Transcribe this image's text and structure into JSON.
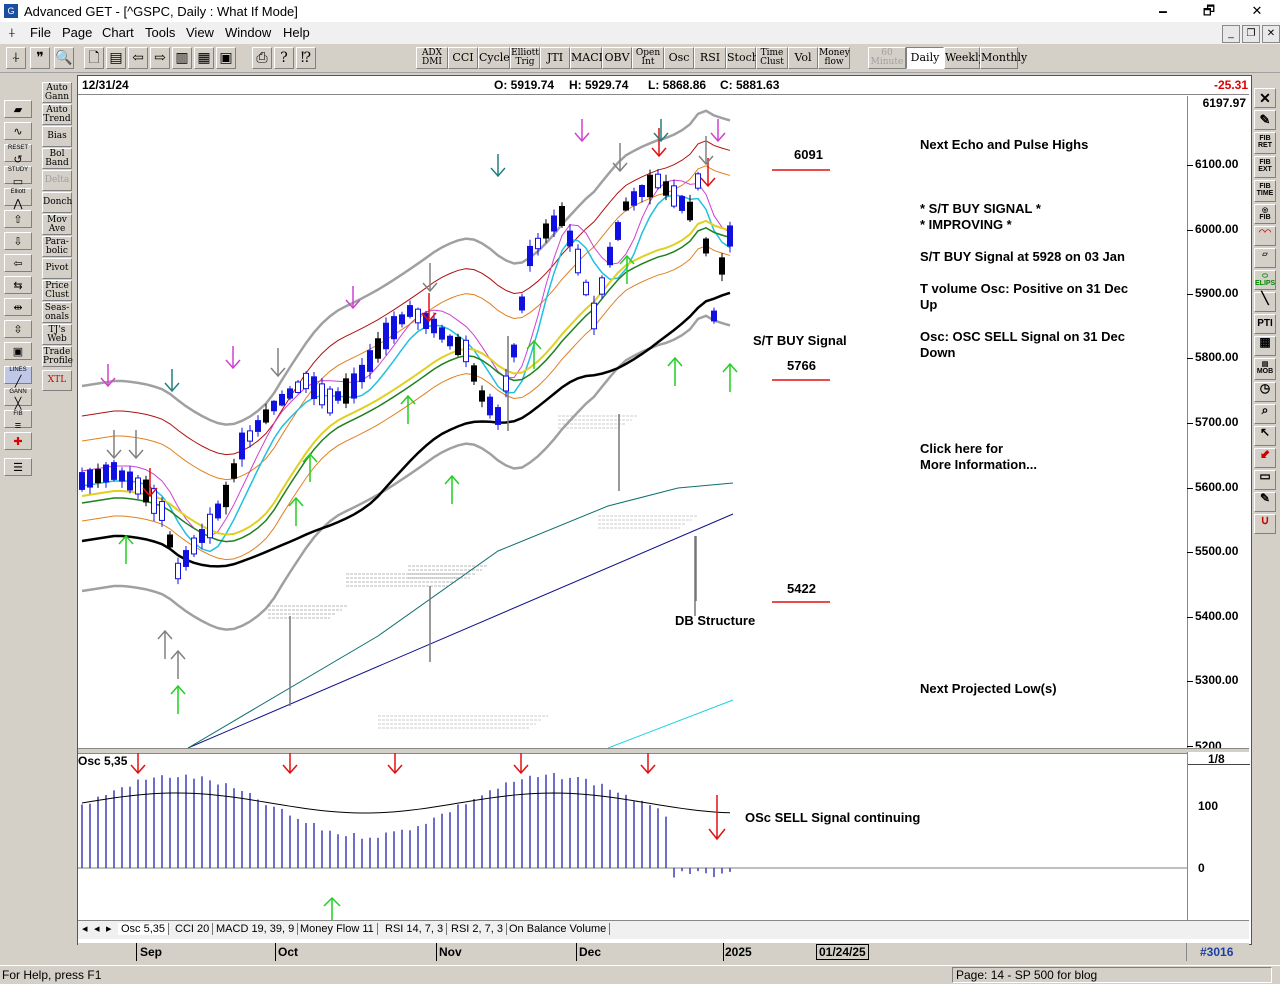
{
  "window": {
    "title": "Advanced GET - [^GSPC, Daily : What If Mode]",
    "minimize": "🗕",
    "maximize": "🗗",
    "close": "✕"
  },
  "menu": [
    "File",
    "Page",
    "Chart",
    "Tools",
    "View",
    "Window",
    "Help"
  ],
  "toolbar": {
    "studies": [
      "ADX\nDMI",
      "CCI",
      "Cycles",
      "Elliott\nTrig",
      "JTI",
      "MACD",
      "OBV",
      "Open\nInt",
      "Osc",
      "RSI",
      "Stoch",
      "Time\nClust",
      "Vol",
      "Money\nflow"
    ],
    "periods": [
      "60\nMinute",
      "Daily",
      "Weekly",
      "Monthly"
    ],
    "selected_period": "Daily"
  },
  "left_studies": [
    "Auto\nGann",
    "Auto\nTrend",
    "Bias",
    "Bol\nBand",
    "Delta",
    "Donch",
    "Mov\nAve",
    "Para-\nbolic",
    "Pivot",
    "Price\nClust",
    "Seas-\nonals",
    "TJ's\nWeb",
    "Trade\nProfile",
    "XTL"
  ],
  "infobar": {
    "date": "12/31/24",
    "open": "O: 5919.74",
    "high": "H: 5929.74",
    "low": "L: 5868.86",
    "close": "C: 5881.63",
    "change": "-25.31"
  },
  "price_axis": {
    "top_value": "6197.97",
    "labels": [
      "6100.00",
      "6000.00",
      "5900.00",
      "5800.00",
      "5700.00",
      "5600.00",
      "5500.00",
      "5400.00",
      "5300.00",
      "5200"
    ],
    "bottom_value": "5200"
  },
  "annotations": {
    "echo_pulse": "Next Echo and Pulse Highs",
    "buy_signal_1": "* S/T BUY SIGNAL *",
    "buy_signal_2": "* IMPROVING *",
    "buy_signal_at": "S/T BUY Signal at 5928 on 03 Jan",
    "tvol_1": "T volume Osc: Positive on 31 Dec",
    "tvol_2": "Up",
    "osc_1": "Osc: OSC SELL Signal on 31 Dec",
    "osc_2": "Down",
    "click_1": "Click here for",
    "click_2": "More Information...",
    "next_low": "Next Projected Low(s)",
    "level_6091": "6091",
    "st_buy": "S/T BUY Signal",
    "level_5766": "5766",
    "level_5422": "5422",
    "db_structure": "DB Structure",
    "osc_continuing": "OSc SELL Signal continuing"
  },
  "oscillator": {
    "title": "Osc 5,35",
    "axis_labels": [
      "1/8",
      "100",
      "0"
    ]
  },
  "tabs": [
    "Osc 5,35",
    "CCI 20",
    "MACD 19, 39, 9",
    "Money Flow 11",
    "RSI 14, 7, 3",
    "RSI 2, 7, 3",
    "On Balance Volume"
  ],
  "selected_tab": "Osc 5,35",
  "date_axis": {
    "months": [
      "Sep",
      "Oct",
      "Nov",
      "Dec",
      "2025"
    ],
    "cursor_date": "01/24/25",
    "bar_count": "#3016"
  },
  "status": {
    "help": "For Help, press F1",
    "page": "Page: 14 - SP 500 for blog"
  },
  "colors": {
    "candle": "#1010e0",
    "ma_thick": "#000000",
    "band_outer": "#a0a0a0",
    "buy_arrow": "#20d020",
    "sell_arrow": "#e01010",
    "level_line": "#e01010",
    "osc_bars": "#3030b0"
  }
}
